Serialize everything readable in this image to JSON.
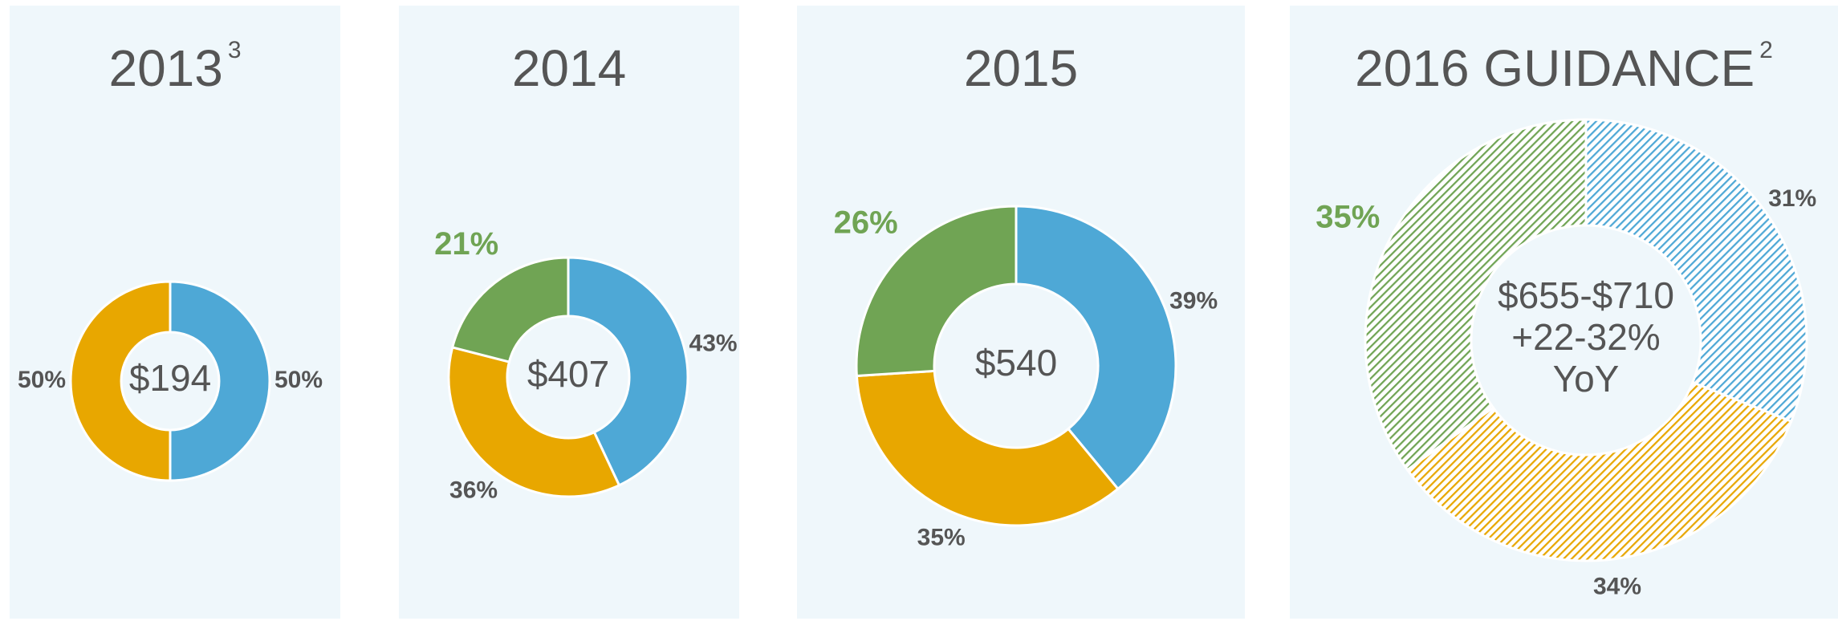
{
  "chart_data": [
    {
      "type": "pie",
      "title": "2013",
      "title_note": "3",
      "center_text": [
        "$194"
      ],
      "categories": [
        "Blue",
        "Orange"
      ],
      "values": [
        50,
        50
      ],
      "value_labels": [
        "50%",
        "50%"
      ],
      "colors": [
        "#4ea8d6",
        "#e8a700"
      ],
      "label_colors": [
        "#555555",
        "#555555"
      ],
      "hatched": false
    },
    {
      "type": "pie",
      "title": "2014",
      "center_text": [
        "$407"
      ],
      "categories": [
        "Blue",
        "Orange",
        "Green"
      ],
      "values": [
        43,
        36,
        21
      ],
      "value_labels": [
        "43%",
        "36%",
        "21%"
      ],
      "colors": [
        "#4ea8d6",
        "#e8a700",
        "#70a454"
      ],
      "label_colors": [
        "#555555",
        "#555555",
        "#70a454"
      ],
      "hatched": false
    },
    {
      "type": "pie",
      "title": "2015",
      "center_text": [
        "$540"
      ],
      "categories": [
        "Blue",
        "Orange",
        "Green"
      ],
      "values": [
        39,
        35,
        26
      ],
      "value_labels": [
        "39%",
        "35%",
        "26%"
      ],
      "colors": [
        "#4ea8d6",
        "#e8a700",
        "#70a454"
      ],
      "label_colors": [
        "#555555",
        "#555555",
        "#70a454"
      ],
      "hatched": false
    },
    {
      "type": "pie",
      "title": "2016 GUIDANCE",
      "title_note": "2",
      "center_text": [
        "$655-$710",
        "+22-32%",
        "YoY"
      ],
      "categories": [
        "Blue",
        "Orange",
        "Green"
      ],
      "values": [
        31,
        34,
        35
      ],
      "value_labels": [
        "31%",
        "34%",
        "35%"
      ],
      "colors": [
        "#4ea8d6",
        "#e8a700",
        "#70a454"
      ],
      "label_colors": [
        "#555555",
        "#555555",
        "#70a454"
      ],
      "hatched": true
    }
  ]
}
